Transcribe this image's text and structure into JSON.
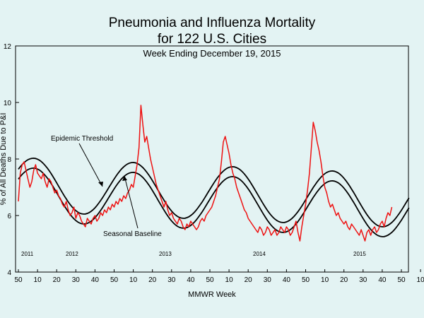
{
  "chart_data": {
    "type": "line",
    "title_line1": "Pneumonia and Influenza Mortality",
    "title_line2": "for 122 U.S. Cities",
    "subtitle": "Week Ending  December 19, 2015",
    "xlabel": "MMWR Week",
    "ylabel": "% of All Deaths Due to P&I",
    "ylim": [
      4,
      12
    ],
    "yticks": [
      "4",
      "6",
      "8",
      "10",
      "12"
    ],
    "x_tick_labels": [
      "50",
      "10",
      "20",
      "30",
      "40",
      "50",
      "10",
      "20",
      "30",
      "40",
      "50",
      "10",
      "20",
      "30",
      "40",
      "50",
      "10",
      "20",
      "30",
      "40",
      "50",
      "10",
      "20",
      "30",
      "40"
    ],
    "year_labels": [
      "2011",
      "2012",
      "2013",
      "2014",
      "2015"
    ],
    "grid": false,
    "annotations": {
      "threshold": "Epidemic Threshold",
      "baseline": "Seasonal Baseline"
    },
    "line_colors": {
      "observed": "#ee1111",
      "threshold": "#000000",
      "baseline": "#000000"
    },
    "series": [
      {
        "name": "% of All Deaths Due to P&I",
        "start_week": "2010-50",
        "values": [
          6.5,
          7.5,
          7.8,
          7.9,
          7.6,
          7.3,
          7.0,
          7.2,
          7.6,
          7.8,
          7.5,
          7.4,
          7.3,
          7.5,
          7.2,
          7.0,
          7.3,
          7.2,
          7.0,
          6.8,
          6.9,
          6.7,
          6.6,
          6.4,
          6.3,
          6.5,
          6.2,
          6.0,
          6.1,
          6.3,
          5.9,
          6.1,
          6.0,
          5.8,
          5.7,
          5.6,
          5.9,
          5.8,
          5.7,
          5.9,
          6.0,
          5.8,
          5.9,
          6.1,
          6.0,
          6.2,
          6.1,
          6.3,
          6.2,
          6.4,
          6.3,
          6.5,
          6.4,
          6.6,
          6.5,
          6.7,
          6.6,
          6.8,
          6.9,
          7.1,
          7.0,
          7.4,
          7.8,
          8.4,
          9.9,
          9.2,
          8.6,
          8.8,
          8.4,
          8.0,
          7.7,
          7.4,
          7.1,
          6.9,
          6.7,
          6.5,
          6.3,
          6.5,
          6.2,
          6.0,
          6.1,
          5.9,
          5.8,
          5.7,
          5.9,
          5.8,
          5.6,
          5.5,
          5.7,
          5.6,
          5.8,
          5.7,
          5.6,
          5.5,
          5.6,
          5.8,
          5.9,
          5.8,
          6.0,
          6.1,
          6.2,
          6.3,
          6.5,
          6.7,
          7.0,
          7.3,
          7.9,
          8.6,
          8.8,
          8.5,
          8.2,
          7.8,
          7.5,
          7.3,
          7.0,
          6.8,
          6.6,
          6.4,
          6.2,
          6.1,
          5.9,
          5.8,
          5.7,
          5.6,
          5.5,
          5.4,
          5.6,
          5.5,
          5.3,
          5.4,
          5.6,
          5.5,
          5.3,
          5.4,
          5.5,
          5.3,
          5.4,
          5.6,
          5.5,
          5.4,
          5.6,
          5.5,
          5.3,
          5.4,
          5.6,
          5.8,
          5.4,
          5.1,
          5.6,
          6.0,
          6.4,
          6.9,
          7.5,
          8.4,
          9.3,
          9.0,
          8.6,
          8.3,
          7.9,
          7.4,
          7.0,
          6.8,
          6.5,
          6.3,
          6.4,
          6.2,
          6.0,
          6.1,
          5.9,
          5.8,
          5.7,
          5.8,
          5.6,
          5.5,
          5.7,
          5.6,
          5.5,
          5.4,
          5.3,
          5.5,
          5.3,
          5.1,
          5.4,
          5.5,
          5.3,
          5.5,
          5.6,
          5.4,
          5.5,
          5.7,
          5.8,
          5.6,
          5.9,
          6.1,
          6.0,
          6.3
        ]
      },
      {
        "name": "Epidemic Threshold",
        "model": {
          "mean": 7.1,
          "amplitude": 0.95,
          "peak_week_offset": 8,
          "trend_per_year": -0.15
        }
      },
      {
        "name": "Seasonal Baseline",
        "model": {
          "mean": 6.75,
          "amplitude": 0.95,
          "peak_week_offset": 8,
          "trend_per_year": -0.15
        }
      }
    ]
  }
}
